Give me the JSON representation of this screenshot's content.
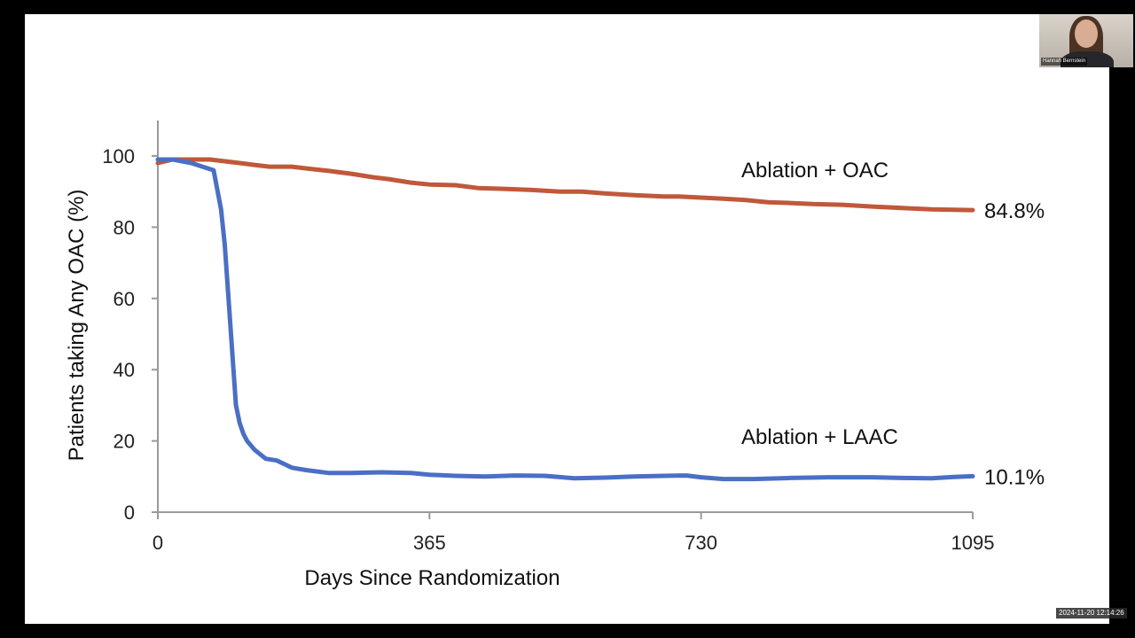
{
  "meeting": {
    "participant_name": "Hannah Bernstein",
    "timestamp": "2024-11-20 12:14:26"
  },
  "chart_data": {
    "type": "line",
    "xlabel": "Days Since Randomization",
    "ylabel": "Patients taking Any OAC (%)",
    "xlim": [
      0,
      1095
    ],
    "ylim": [
      0,
      110
    ],
    "xticks": [
      0,
      365,
      730,
      1095
    ],
    "yticks": [
      0,
      20,
      40,
      60,
      80,
      100
    ],
    "grid": false,
    "series": [
      {
        "name": "Ablation + OAC",
        "end_label": "84.8%",
        "color": "#c0583a",
        "x": [
          0,
          20,
          50,
          70,
          90,
          110,
          130,
          150,
          180,
          200,
          230,
          260,
          290,
          310,
          340,
          365,
          400,
          430,
          460,
          500,
          540,
          570,
          600,
          640,
          680,
          700,
          730,
          760,
          790,
          820,
          850,
          880,
          920,
          960,
          1000,
          1040,
          1070,
          1095
        ],
        "y": [
          98,
          99,
          99,
          99,
          98.5,
          98,
          97.5,
          97,
          97,
          96.5,
          95.8,
          95,
          94,
          93.5,
          92.5,
          92,
          91.8,
          91,
          90.8,
          90.5,
          90,
          90,
          89.5,
          89,
          88.6,
          88.6,
          88.3,
          88,
          87.6,
          87,
          86.8,
          86.5,
          86.3,
          85.8,
          85.4,
          85,
          84.9,
          84.8
        ]
      },
      {
        "name": "Ablation + LAAC",
        "end_label": "10.1%",
        "color": "#4a6fc5",
        "x": [
          0,
          20,
          45,
          60,
          75,
          85,
          90,
          95,
          100,
          105,
          110,
          115,
          120,
          130,
          145,
          160,
          180,
          200,
          230,
          260,
          300,
          340,
          365,
          400,
          440,
          480,
          520,
          560,
          600,
          640,
          680,
          710,
          730,
          760,
          800,
          850,
          900,
          960,
          1000,
          1040,
          1070,
          1095
        ],
        "y": [
          99,
          99,
          98,
          97,
          96,
          85,
          75,
          60,
          45,
          30,
          25,
          22,
          20,
          17.5,
          15,
          14.5,
          12.5,
          11.8,
          11,
          11,
          11.2,
          11,
          10.5,
          10.2,
          10,
          10.3,
          10.2,
          9.5,
          9.7,
          10,
          10.2,
          10.3,
          9.8,
          9.3,
          9.3,
          9.6,
          9.8,
          9.8,
          9.6,
          9.5,
          9.9,
          10.1
        ]
      }
    ]
  }
}
